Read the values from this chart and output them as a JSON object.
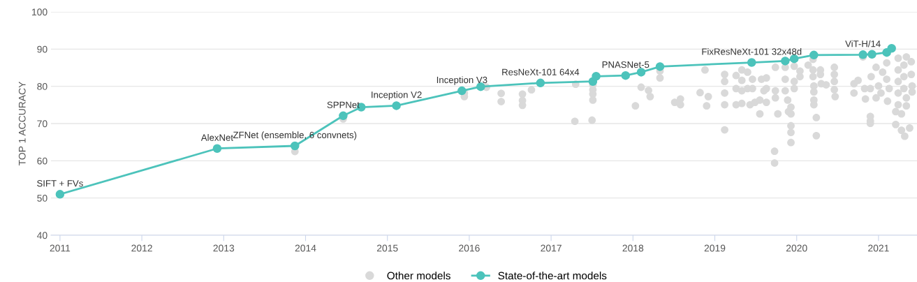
{
  "chart_data": {
    "type": "scatter",
    "ylabel": "TOP 1 ACCURACY",
    "xlim": [
      2010.89,
      2021.47
    ],
    "xticks": [
      2011,
      2012,
      2013,
      2014,
      2015,
      2016,
      2017,
      2018,
      2019,
      2020,
      2021
    ],
    "ylim": [
      40,
      100
    ],
    "yticks": [
      40,
      50,
      60,
      70,
      80,
      90,
      100
    ],
    "grid": "y",
    "legend": "bottom",
    "series": [
      {
        "name": "Other models",
        "color": "#d9d9d9",
        "marker": "circle",
        "x": [
          2013.87,
          2014.46,
          2015.94,
          2015.94,
          2016.21,
          2016.39,
          2016.39,
          2016.65,
          2016.65,
          2016.65,
          2016.76,
          2017.3,
          2017.29,
          2017.51,
          2017.51,
          2017.51,
          2017.51,
          2017.5,
          2018.33,
          2018.33,
          2018.1,
          2018.19,
          2018.21,
          2018.03,
          2018.51,
          2018.58,
          2018.58,
          2018.88,
          2018.82,
          2018.92,
          2018.9,
          2019.12,
          2019.12,
          2019.12,
          2019.12,
          2019.12,
          2019.26,
          2019.26,
          2019.26,
          2019.33,
          2019.33,
          2019.33,
          2019.33,
          2019.4,
          2019.4,
          2019.43,
          2019.46,
          2019.46,
          2019.49,
          2019.55,
          2019.55,
          2019.57,
          2019.6,
          2019.63,
          2019.63,
          2019.63,
          2019.74,
          2019.74,
          2019.74,
          2019.77,
          2019.73,
          2019.73,
          2019.86,
          2019.86,
          2019.86,
          2019.89,
          2019.9,
          2019.93,
          2019.93,
          2019.93,
          2019.93,
          2019.93,
          2019.97,
          2019.97,
          2019.97,
          2020.04,
          2020.04,
          2020.14,
          2020.2,
          2020.2,
          2020.2,
          2020.21,
          2020.21,
          2020.21,
          2020.21,
          2020.24,
          2020.24,
          2020.29,
          2020.29,
          2020.3,
          2020.36,
          2020.46,
          2020.46,
          2020.46,
          2020.46,
          2020.47,
          2020.7,
          2020.7,
          2020.75,
          2020.81,
          2020.83,
          2020.84,
          2020.9,
          2020.9,
          2020.9,
          2020.9,
          2020.91,
          2020.97,
          2020.97,
          2021.0,
          2021.03,
          2021.05,
          2021.1,
          2021.1,
          2021.11,
          2021.13,
          2021.21,
          2021.21,
          2021.24,
          2021.24,
          2021.24,
          2021.24,
          2021.24,
          2021.28,
          2021.28,
          2021.31,
          2021.31,
          2021.31,
          2021.32,
          2021.34,
          2021.34,
          2021.34,
          2021.38,
          2021.4,
          2021.4,
          2021.41,
          2021.41
        ],
        "values": [
          62.5,
          71.25,
          78.2,
          77.25,
          79.75,
          78.1,
          75.9,
          77.9,
          76.2,
          74.9,
          79.05,
          80.55,
          70.6,
          80.4,
          79.1,
          77.9,
          76.3,
          70.9,
          84.1,
          82.25,
          79.75,
          78.9,
          77.25,
          74.75,
          75.7,
          76.6,
          75.05,
          84.4,
          78.3,
          77.25,
          74.75,
          83.2,
          81.3,
          78.2,
          75.05,
          68.3,
          82.9,
          79.4,
          75.05,
          84.4,
          81.6,
          78.8,
          75.4,
          83.8,
          79.4,
          75.05,
          81.9,
          79.4,
          75.7,
          76.3,
          72.6,
          81.9,
          78.8,
          82.25,
          79.4,
          75.7,
          85.1,
          78.8,
          76.9,
          72.6,
          62.55,
          59.4,
          85.1,
          81.9,
          78.8,
          76.3,
          73.2,
          74.4,
          72.6,
          69.4,
          67.6,
          64.9,
          85.4,
          81.3,
          79.4,
          84.1,
          82.6,
          85.7,
          87.25,
          84.4,
          82.6,
          80.1,
          78.5,
          76.3,
          75.05,
          71.6,
          66.75,
          84.4,
          83.2,
          80.7,
          80.4,
          85.1,
          83.2,
          81.3,
          79.1,
          77.25,
          80.7,
          78.2,
          81.6,
          87.9,
          79.4,
          76.6,
          71.9,
          70.7,
          70.05,
          79.4,
          82.6,
          85.1,
          76.9,
          80.1,
          78.2,
          83.8,
          86.3,
          81.9,
          76.0,
          79.4,
          73.2,
          69.75,
          87.55,
          84.4,
          81.3,
          78.2,
          75.05,
          72.6,
          68.2,
          85.7,
          82.6,
          79.4,
          66.6,
          87.9,
          76.9,
          74.75,
          68.8,
          86.6,
          83.2,
          80.1,
          78.5
        ]
      },
      {
        "name": "State-of-the-art models",
        "type": "line",
        "color": "#4cc3bb",
        "marker": "circle",
        "line_style": "solid",
        "x": [
          2011.0,
          2012.92,
          2013.87,
          2014.46,
          2014.68,
          2015.11,
          2015.91,
          2016.14,
          2016.87,
          2017.51,
          2017.55,
          2017.91,
          2018.1,
          2018.33,
          2019.45,
          2019.86,
          2019.97,
          2020.21,
          2020.81,
          2020.92,
          2021.1,
          2021.16
        ],
        "values": [
          51.0,
          63.3,
          64.0,
          72.1,
          74.4,
          74.8,
          78.8,
          79.9,
          80.9,
          81.3,
          82.7,
          82.9,
          83.8,
          85.3,
          86.4,
          86.8,
          87.4,
          88.4,
          88.5,
          88.6,
          89.1,
          90.2
        ]
      }
    ],
    "annotations": [
      {
        "text": "SIFT + FVs",
        "x": 2011.0,
        "y": 51.0
      },
      {
        "text": "AlexNet",
        "x": 2012.92,
        "y": 63.3
      },
      {
        "text": "ZFNet (ensemble, 6 convnets)",
        "x": 2013.87,
        "y": 64.0
      },
      {
        "text": "SPPNet",
        "x": 2014.46,
        "y": 72.1
      },
      {
        "text": "Inception V2",
        "x": 2015.11,
        "y": 74.8
      },
      {
        "text": "Inception V3",
        "x": 2015.91,
        "y": 78.8
      },
      {
        "text": "ResNeXt-101 64x4",
        "x": 2016.87,
        "y": 80.9
      },
      {
        "text": "PNASNet-5",
        "x": 2017.91,
        "y": 82.9
      },
      {
        "text": "FixResNeXt-101 32x48d",
        "x": 2019.45,
        "y": 86.4
      },
      {
        "text": "ViT-H/14",
        "x": 2020.81,
        "y": 88.5
      }
    ]
  }
}
